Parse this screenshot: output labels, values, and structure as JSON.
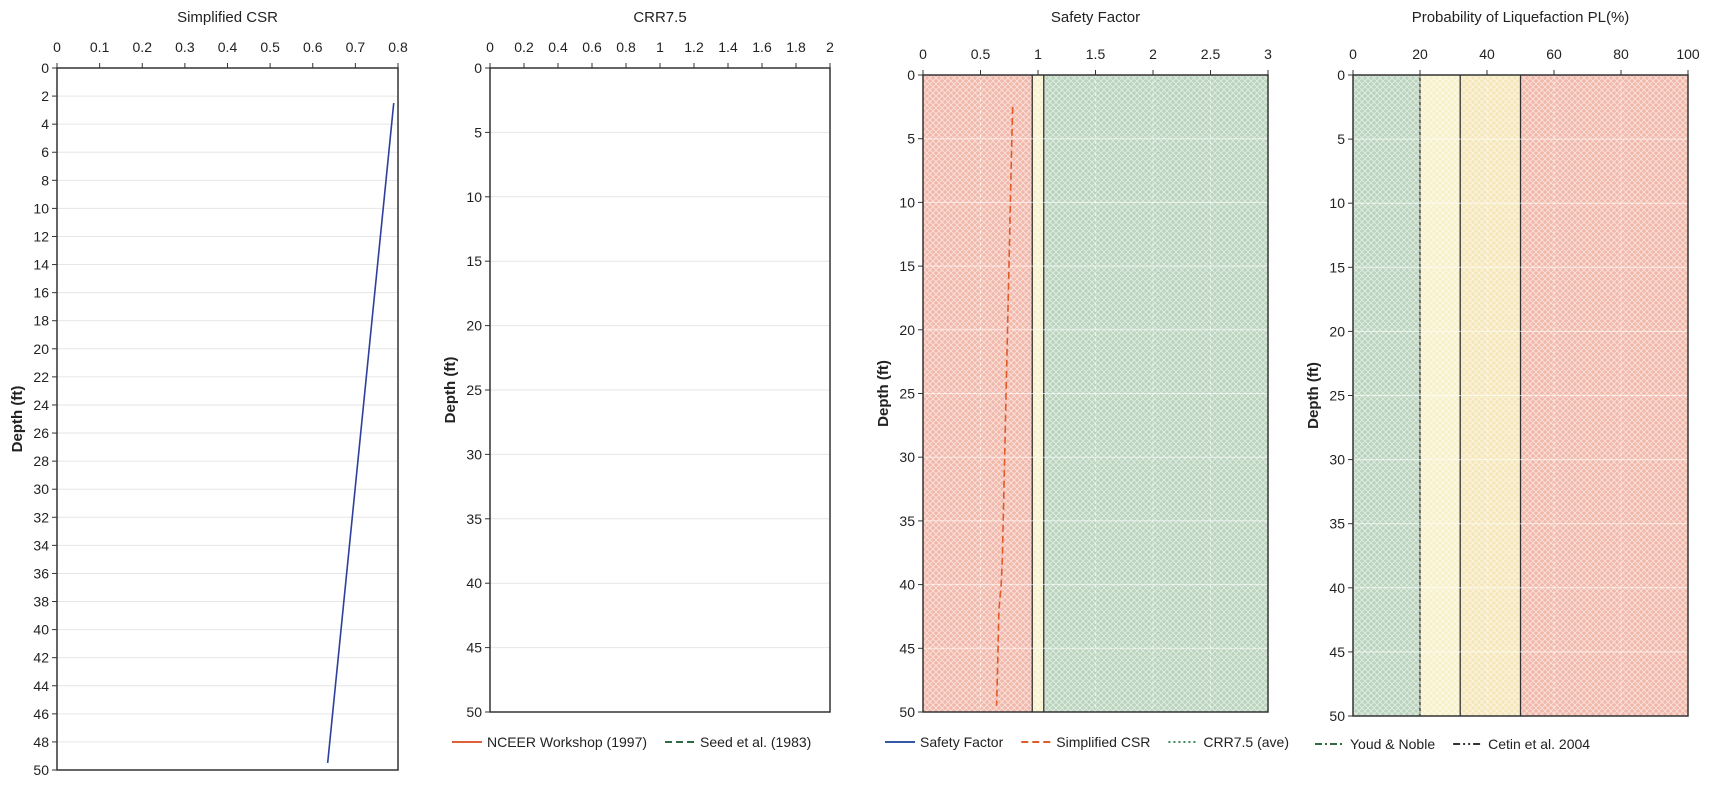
{
  "chart_data": [
    {
      "type": "line",
      "title": "Simplified CSR",
      "xlabel": "",
      "ylabel": "Depth (ft)",
      "xlim": [
        0,
        0.8
      ],
      "ylim": [
        0,
        50
      ],
      "y_inverted": true,
      "xticks": [
        "0",
        "0.1",
        "0.2",
        "0.3",
        "0.4",
        "0.5",
        "0.6",
        "0.7",
        "0.8"
      ],
      "yticks": [
        "0",
        "2",
        "4",
        "6",
        "8",
        "10",
        "12",
        "14",
        "16",
        "18",
        "20",
        "22",
        "24",
        "26",
        "28",
        "30",
        "32",
        "34",
        "36",
        "38",
        "40",
        "42",
        "44",
        "46",
        "48",
        "50"
      ],
      "grid": "horizontal",
      "series": [
        {
          "color": "#2e3f9c",
          "x": [
            0.79,
            0.635
          ],
          "y": [
            2.5,
            49.5
          ]
        }
      ]
    },
    {
      "type": "line",
      "title": "CRR7.5",
      "xlabel": "",
      "ylabel": "Depth (ft)",
      "xlim": [
        0,
        2
      ],
      "ylim": [
        0,
        50
      ],
      "y_inverted": true,
      "xticks": [
        "0",
        "0.2",
        "0.4",
        "0.6",
        "0.8",
        "1",
        "1.2",
        "1.4",
        "1.6",
        "1.8",
        "2"
      ],
      "yticks": [
        "0",
        "5",
        "10",
        "15",
        "20",
        "25",
        "30",
        "35",
        "40",
        "45",
        "50"
      ],
      "grid": "horizontal",
      "series": [],
      "legend": [
        {
          "label": "NCEER Workshop (1997)",
          "color": "#e0603a",
          "style": "solid"
        },
        {
          "label": "Seed et al. (1983)",
          "color": "#2e6b45",
          "style": "dashed"
        }
      ]
    },
    {
      "type": "line",
      "title": "Safety Factor",
      "xlabel": "",
      "ylabel": "Depth (ft)",
      "xlim": [
        0,
        3
      ],
      "ylim": [
        0,
        50
      ],
      "y_inverted": true,
      "xticks": [
        "0",
        "0.5",
        "1",
        "1.5",
        "2",
        "2.5",
        "3"
      ],
      "yticks": [
        "0",
        "5",
        "10",
        "15",
        "20",
        "25",
        "30",
        "35",
        "40",
        "45",
        "50"
      ],
      "grid": "both",
      "zones": [
        {
          "from": 0,
          "to": 0.95,
          "color": "#f1b7a9"
        },
        {
          "from": 0.95,
          "to": 1.05,
          "color": "#f7f0c8"
        },
        {
          "from": 1.05,
          "to": 3,
          "color": "#b9d3bd"
        }
      ],
      "series": [
        {
          "color": "#e05a2a",
          "style": "dashed",
          "x": [
            0.78,
            0.77,
            0.76,
            0.75,
            0.74,
            0.73,
            0.72,
            0.71,
            0.7,
            0.69,
            0.68,
            0.66,
            0.65,
            0.64
          ],
          "y": [
            2.5,
            6,
            10,
            14,
            18,
            22,
            26,
            30,
            34,
            38,
            40,
            42,
            46,
            49.5
          ]
        }
      ],
      "legend": [
        {
          "label": "Safety Factor",
          "color": "#3558a6",
          "style": "solid"
        },
        {
          "label": "Simplified CSR",
          "color": "#e05a2a",
          "style": "dashed"
        },
        {
          "label": "CRR7.5 (ave)",
          "color": "#3e8a5a",
          "style": "dotted"
        }
      ]
    },
    {
      "type": "line",
      "title": "Probability of Liquefaction PL(%)",
      "xlabel": "",
      "ylabel": "Depth (ft)",
      "xlim": [
        0,
        100
      ],
      "ylim": [
        0,
        50
      ],
      "y_inverted": true,
      "xticks": [
        "0",
        "20",
        "40",
        "60",
        "80",
        "100"
      ],
      "yticks": [
        "0",
        "5",
        "10",
        "15",
        "20",
        "25",
        "30",
        "35",
        "40",
        "45",
        "50"
      ],
      "grid": "both",
      "zones": [
        {
          "from": 0,
          "to": 20,
          "color": "#b9d3bd"
        },
        {
          "from": 20,
          "to": 32,
          "color": "#f7f0c8"
        },
        {
          "from": 32,
          "to": 50,
          "color": "#f5e6b8"
        },
        {
          "from": 50,
          "to": 100,
          "color": "#f1b7a9"
        }
      ],
      "series": [],
      "legend": [
        {
          "label": "Youd & Noble",
          "color": "#2e6b45",
          "style": "dashdot"
        },
        {
          "label": "Cetin et al. 2004",
          "color": "#333333",
          "style": "dashdotdot"
        }
      ]
    }
  ]
}
